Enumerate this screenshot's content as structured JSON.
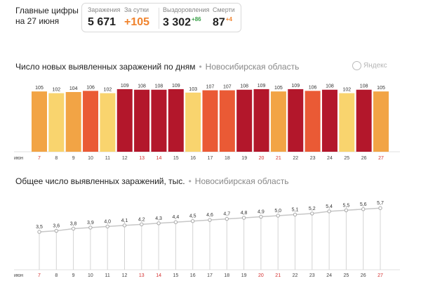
{
  "headline": {
    "line1": "Главные цифры",
    "line2": "на 27 июня"
  },
  "stats": {
    "infections": {
      "label": "Заражения",
      "value": "5 671"
    },
    "per_day": {
      "label": "За сутки",
      "value": "+105"
    },
    "recovered": {
      "label": "Выздоровления",
      "value": "3 302",
      "delta": "+86"
    },
    "deaths": {
      "label": "Смерти",
      "value": "87",
      "delta": "+4"
    }
  },
  "chart1_header": {
    "title": "Число новых выявленных заражений по дням",
    "region": "Новосибирская область",
    "logo": "Яндекс"
  },
  "chart2_header": {
    "title": "Общее число выявленных заражений, тыс.",
    "region": "Новосибирская область"
  },
  "colors": {
    "low": "#f9d46e",
    "mid": "#f2a445",
    "high": "#ea5a35",
    "top": "#b3172b",
    "line": "#c7c7c7",
    "weekend": "#d32f2f"
  },
  "chart_data": [
    {
      "type": "bar",
      "title": "Число новых выявленных заражений по дням",
      "month_label": "июн",
      "categories": [
        "7",
        "8",
        "9",
        "10",
        "11",
        "12",
        "13",
        "14",
        "15",
        "16",
        "17",
        "18",
        "19",
        "20",
        "21",
        "22",
        "23",
        "24",
        "25",
        "26",
        "27"
      ],
      "values": [
        105,
        102,
        104,
        106,
        102,
        109,
        108,
        108,
        109,
        103,
        107,
        107,
        108,
        109,
        105,
        109,
        106,
        108,
        102,
        108,
        105
      ],
      "weekend_days": [
        "7",
        "13",
        "14",
        "20",
        "21",
        "27"
      ],
      "ylim": [
        0,
        115
      ]
    },
    {
      "type": "line",
      "title": "Общее число выявленных заражений, тыс.",
      "month_label": "июн",
      "categories": [
        "7",
        "8",
        "9",
        "10",
        "11",
        "12",
        "13",
        "14",
        "15",
        "16",
        "17",
        "18",
        "19",
        "20",
        "21",
        "22",
        "23",
        "24",
        "25",
        "26",
        "27"
      ],
      "values": [
        3.5,
        3.6,
        3.8,
        3.9,
        4.0,
        4.1,
        4.2,
        4.3,
        4.4,
        4.5,
        4.6,
        4.7,
        4.8,
        4.9,
        5.0,
        5.1,
        5.2,
        5.4,
        5.5,
        5.6,
        5.7
      ],
      "value_labels": [
        "3,5",
        "3,6",
        "3,8",
        "3,9",
        "4,0",
        "4,1",
        "4,2",
        "4,3",
        "4,4",
        "4,5",
        "4,6",
        "4,7",
        "4,8",
        "4,9",
        "5,0",
        "5,1",
        "5,2",
        "5,4",
        "5,5",
        "5,6",
        "5,7"
      ],
      "weekend_days": [
        "7",
        "13",
        "14",
        "20",
        "21",
        "27"
      ],
      "ylim": [
        0,
        6
      ]
    }
  ]
}
